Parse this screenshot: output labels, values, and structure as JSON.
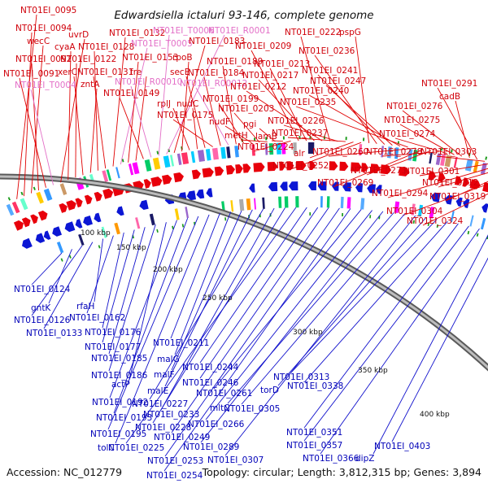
{
  "title": "Edwardsiella ictaluri 93-146, complete genome",
  "accession": "Accession: NC_012779",
  "topology": "Topology: circular; Length: 3,812,315 bp; Genes: 3,894",
  "colors": {
    "forward": "#e8000b",
    "reverse": "#0b16d4",
    "rna": "#e28fd1",
    "backbone": "#8a8a8a"
  },
  "scale_ticks": [
    "100 kbp",
    "150 kbp",
    "200 kbp",
    "250 kbp",
    "300 kbp",
    "350 kbp",
    "400 kbp"
  ],
  "labels_top": [
    "NT01EI_0095",
    "NT01EI_0094",
    "wecC",
    "NT01EI_0092",
    "NT01EI_0091",
    "NT01EI_T0004",
    "uvrD",
    "cyaA",
    "NT01EI_0122",
    "xerC",
    "zntA",
    "NT01EI_0128",
    "NT01EI_0131",
    "NT01EI_0132",
    "NT01EI_T0005",
    "NT01EI_0153",
    "fre",
    "NT01EI_0149",
    "NT01EI_R00010",
    "NT01EI_T0006",
    "NT01EI_R0001",
    "NT01EI_0183",
    "rpoB",
    "rplJ",
    "nudC",
    "secE",
    "NT01EI_0175",
    "NT01EI_0184",
    "NT01EI_R00012",
    "NT01EI_0189",
    "NT01EI_0199",
    "nudF",
    "NT01EI_0203",
    "metH",
    "pgi",
    "lamB",
    "NT01EI_0224",
    "NT01EI_0209",
    "NT01EI_0213",
    "NT01EI_0217",
    "NT01EI_0212",
    "NT01EI_0222",
    "NT01EI_0226",
    "NT01EI_0237",
    "alr",
    "NT01EI_0252",
    "pspG",
    "NT01EI_0236",
    "NT01EI_0241",
    "NT01EI_0247",
    "NT01EI_0240",
    "NT01EI_0235",
    "NT01EI_0260",
    "NT01EI_0269",
    "NT01EI_0273",
    "NT01EI_0278",
    "NT01EI_0274",
    "NT01EI_0275",
    "NT01EI_0276",
    "cadB",
    "NT01EI_0291",
    "NT01EI_0303",
    "NT01EI_0301",
    "NT01EI_0294",
    "NT01EI_0312",
    "NT01EI_0319",
    "NT01EI_0304",
    "NT01EI_0324"
  ],
  "labels_bottom": [
    "NT01EI_0124",
    "gntK",
    "NT01EI_0126",
    "NT01EI_0133",
    "rfaH",
    "NT01EI_0162",
    "NT01EI_0176",
    "NT01EI_0177",
    "NT01EI_0185",
    "NT01EI_0186",
    "actP",
    "NT01EI_0192",
    "NT01EI_0193",
    "NT01EI_0195",
    "tolC",
    "NT01EI_0211",
    "malG",
    "malF",
    "malE",
    "NT01EI_0227",
    "NT01EI_0233",
    "NT01EI_0228",
    "NT01EI_0225",
    "NT01EI_0244",
    "NT01EI_0246",
    "NT01EI_0249",
    "NT01EI_0253",
    "NT01EI_0254",
    "NT01EI_0261",
    "NT01EI_0266",
    "NT01EI_0289",
    "mltC",
    "NT01EI_0305",
    "NT01EI_0307",
    "torD",
    "NT01EI_0313",
    "NT01EI_0338",
    "NT01EI_0351",
    "NT01EI_0357",
    "NT01EI_0366",
    "dipZ",
    "NT01EI_0403"
  ]
}
